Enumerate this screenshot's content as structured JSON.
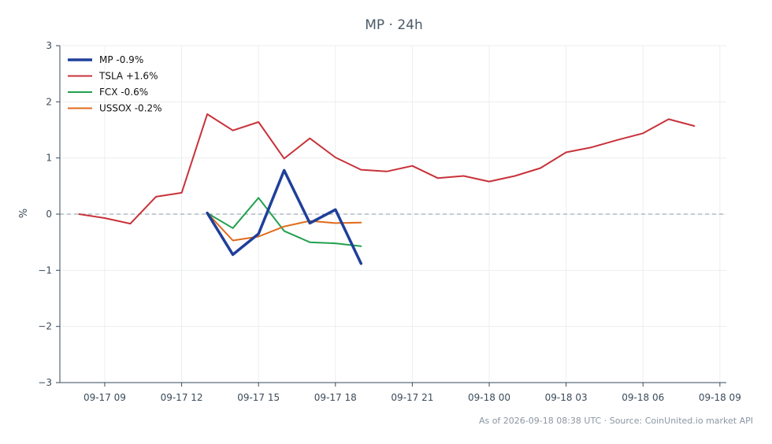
{
  "chart_data": {
    "type": "line",
    "title": "MP · 24h",
    "xlabel": "",
    "ylabel": "%",
    "ylim": [
      -3,
      3
    ],
    "xlim": [
      "2026-09-17T07:15",
      "2026-09-18T09:15"
    ],
    "yticks": [
      {
        "value": 3,
        "label": "3"
      },
      {
        "value": 2,
        "label": "2"
      },
      {
        "value": 1,
        "label": "1"
      },
      {
        "value": 0,
        "label": "0"
      },
      {
        "value": -1,
        "label": "−1"
      },
      {
        "value": -2,
        "label": "−2"
      },
      {
        "value": -3,
        "label": "−3"
      }
    ],
    "xticks": [
      {
        "value": "2026-09-17T09:00",
        "label": "09-17 09"
      },
      {
        "value": "2026-09-17T12:00",
        "label": "09-17 12"
      },
      {
        "value": "2026-09-17T15:00",
        "label": "09-17 15"
      },
      {
        "value": "2026-09-17T18:00",
        "label": "09-17 18"
      },
      {
        "value": "2026-09-17T21:00",
        "label": "09-17 21"
      },
      {
        "value": "2026-09-18T00:00",
        "label": "09-18 00"
      },
      {
        "value": "2026-09-18T03:00",
        "label": "09-18 03"
      },
      {
        "value": "2026-09-18T06:00",
        "label": "09-18 06"
      },
      {
        "value": "2026-09-18T09:00",
        "label": "09-18 09"
      }
    ],
    "grid": true,
    "zero_line": "dashed",
    "legend_position": "top-left",
    "series": [
      {
        "name": "MP -0.9%",
        "color": "#1f3f9a",
        "emphasis": true,
        "x": [
          "2026-09-17T13:00",
          "2026-09-17T14:00",
          "2026-09-17T15:00",
          "2026-09-17T16:00",
          "2026-09-17T17:00",
          "2026-09-17T18:00",
          "2026-09-17T19:00"
        ],
        "y": [
          0.02,
          -0.72,
          -0.35,
          0.78,
          -0.16,
          0.08,
          -0.88
        ]
      },
      {
        "name": "TSLA +1.6%",
        "color": "#c8323a",
        "x": [
          "2026-09-17T08:00",
          "2026-09-17T09:00",
          "2026-09-17T10:00",
          "2026-09-17T11:00",
          "2026-09-17T12:00",
          "2026-09-17T13:00",
          "2026-09-17T14:00",
          "2026-09-17T15:00",
          "2026-09-17T16:00",
          "2026-09-17T17:00",
          "2026-09-17T18:00",
          "2026-09-17T19:00",
          "2026-09-17T20:00",
          "2026-09-17T21:00",
          "2026-09-17T22:00",
          "2026-09-17T23:00",
          "2026-09-18T00:00",
          "2026-09-18T01:00",
          "2026-09-18T02:00",
          "2026-09-18T03:00",
          "2026-09-18T04:00",
          "2026-09-18T05:00",
          "2026-09-18T06:00",
          "2026-09-18T07:00",
          "2026-09-18T08:00"
        ],
        "y": [
          0.0,
          -0.07,
          -0.17,
          0.31,
          0.38,
          1.78,
          1.49,
          1.64,
          0.99,
          1.35,
          1.01,
          0.79,
          0.76,
          0.86,
          0.64,
          0.68,
          0.58,
          0.68,
          0.82,
          1.1,
          1.19,
          1.32,
          1.44,
          1.69,
          1.57
        ]
      },
      {
        "name": "FCX -0.6%",
        "color": "#22a04f",
        "x": [
          "2026-09-17T13:00",
          "2026-09-17T14:00",
          "2026-09-17T15:00",
          "2026-09-17T16:00",
          "2026-09-17T17:00",
          "2026-09-17T18:00",
          "2026-09-17T19:00"
        ],
        "y": [
          0.02,
          -0.25,
          0.29,
          -0.3,
          -0.5,
          -0.52,
          -0.57
        ]
      },
      {
        "name": "USSOX -0.2%",
        "color": "#e06a1b",
        "x": [
          "2026-09-17T13:00",
          "2026-09-17T14:00",
          "2026-09-17T15:00",
          "2026-09-17T16:00",
          "2026-09-17T17:00",
          "2026-09-17T18:00",
          "2026-09-17T19:00"
        ],
        "y": [
          0.02,
          -0.47,
          -0.4,
          -0.22,
          -0.12,
          -0.16,
          -0.15
        ]
      }
    ],
    "footer": "As of 2026-09-18 08:38 UTC · Source: CoinUnited.io market API"
  }
}
